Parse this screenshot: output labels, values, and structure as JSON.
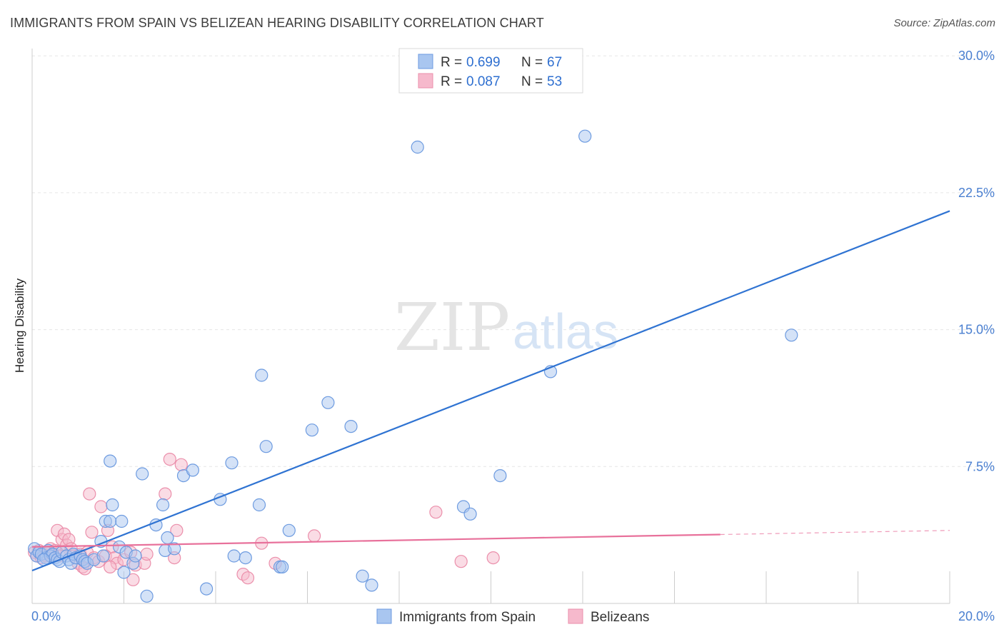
{
  "title": "IMMIGRANTS FROM SPAIN VS BELIZEAN HEARING DISABILITY CORRELATION CHART",
  "source": "Source: ZipAtlas.com",
  "watermark": {
    "zip": "ZIP",
    "atlas": "atlas"
  },
  "colors": {
    "blue_fill": "#a9c6f0",
    "blue_stroke": "#6d9be0",
    "blue_line": "#2f73d2",
    "pink_fill": "#f6b9cc",
    "pink_stroke": "#eb8fab",
    "pink_line": "#e8719b",
    "grid": "#e6e6e6",
    "tick_label": "#4a7fd0"
  },
  "legend": {
    "r_label": "R =",
    "n_label": "N =",
    "series": [
      {
        "r": "0.699",
        "n": "67"
      },
      {
        "r": "0.087",
        "n": "53"
      }
    ]
  },
  "chart_data": {
    "type": "scatter",
    "title": "IMMIGRANTS FROM SPAIN VS BELIZEAN HEARING DISABILITY CORRELATION CHART",
    "xlabel": "",
    "ylabel": "Hearing Disability",
    "xlim": [
      0,
      20
    ],
    "ylim": [
      0,
      31
    ],
    "x_tick_labels": [
      "0.0%",
      "20.0%"
    ],
    "y_ticks": [
      7.5,
      15.0,
      22.5,
      30.0
    ],
    "y_tick_labels": [
      "7.5%",
      "15.0%",
      "22.5%",
      "30.0%"
    ],
    "grid": true,
    "legend_position": "top-center",
    "series": [
      {
        "name": "Immigrants from Spain",
        "r": 0.699,
        "n": 67,
        "trend": {
          "x": [
            0,
            20
          ],
          "y": [
            1.8,
            21.5
          ],
          "solid_until": 20
        },
        "points": [
          [
            0.05,
            3.0
          ],
          [
            0.1,
            2.6
          ],
          [
            0.15,
            2.8
          ],
          [
            0.2,
            2.7
          ],
          [
            0.3,
            2.5
          ],
          [
            0.35,
            2.9
          ],
          [
            0.4,
            2.6
          ],
          [
            0.45,
            2.7
          ],
          [
            0.5,
            2.5
          ],
          [
            0.55,
            2.4
          ],
          [
            0.6,
            2.3
          ],
          [
            0.65,
            2.8
          ],
          [
            0.75,
            2.6
          ],
          [
            0.8,
            2.4
          ],
          [
            0.85,
            2.2
          ],
          [
            0.9,
            2.7
          ],
          [
            0.95,
            2.5
          ],
          [
            1.05,
            2.6
          ],
          [
            1.1,
            2.4
          ],
          [
            1.15,
            2.3
          ],
          [
            1.2,
            2.2
          ],
          [
            1.35,
            2.4
          ],
          [
            1.5,
            3.4
          ],
          [
            1.55,
            2.6
          ],
          [
            1.6,
            4.5
          ],
          [
            1.7,
            4.5
          ],
          [
            1.7,
            7.8
          ],
          [
            1.75,
            5.4
          ],
          [
            1.9,
            3.1
          ],
          [
            1.95,
            4.5
          ],
          [
            2.0,
            1.7
          ],
          [
            2.05,
            2.8
          ],
          [
            2.2,
            2.2
          ],
          [
            2.25,
            2.6
          ],
          [
            2.4,
            7.1
          ],
          [
            2.5,
            0.4
          ],
          [
            2.7,
            4.3
          ],
          [
            2.85,
            5.4
          ],
          [
            2.9,
            2.9
          ],
          [
            2.95,
            3.6
          ],
          [
            3.1,
            3.0
          ],
          [
            3.3,
            7.0
          ],
          [
            3.5,
            7.3
          ],
          [
            3.8,
            0.8
          ],
          [
            4.1,
            5.7
          ],
          [
            4.35,
            7.7
          ],
          [
            4.4,
            2.6
          ],
          [
            4.65,
            2.5
          ],
          [
            4.95,
            5.4
          ],
          [
            5.0,
            12.5
          ],
          [
            5.1,
            8.6
          ],
          [
            5.4,
            2.0
          ],
          [
            5.45,
            2.0
          ],
          [
            5.6,
            4.0
          ],
          [
            6.1,
            9.5
          ],
          [
            6.45,
            11.0
          ],
          [
            6.95,
            9.7
          ],
          [
            7.4,
            1.0
          ],
          [
            8.4,
            25.0
          ],
          [
            9.4,
            5.3
          ],
          [
            9.55,
            4.9
          ],
          [
            10.2,
            7.0
          ],
          [
            11.3,
            12.7
          ],
          [
            12.05,
            25.6
          ],
          [
            16.55,
            14.7
          ],
          [
            7.2,
            1.5
          ],
          [
            0.25,
            2.4
          ]
        ]
      },
      {
        "name": "Belizeans",
        "r": 0.087,
        "n": 53,
        "trend": {
          "x": [
            0,
            20
          ],
          "y": [
            3.1,
            4.0
          ],
          "solid_until": 15.0
        },
        "points": [
          [
            0.05,
            2.8
          ],
          [
            0.1,
            2.6
          ],
          [
            0.15,
            2.9
          ],
          [
            0.2,
            2.5
          ],
          [
            0.25,
            2.7
          ],
          [
            0.3,
            2.6
          ],
          [
            0.35,
            2.8
          ],
          [
            0.4,
            3.0
          ],
          [
            0.45,
            2.7
          ],
          [
            0.5,
            2.9
          ],
          [
            0.55,
            4.0
          ],
          [
            0.6,
            2.6
          ],
          [
            0.65,
            3.5
          ],
          [
            0.7,
            3.8
          ],
          [
            0.75,
            3.2
          ],
          [
            0.8,
            3.5
          ],
          [
            0.85,
            3.0
          ],
          [
            0.9,
            2.6
          ],
          [
            1.0,
            2.2
          ],
          [
            1.05,
            2.7
          ],
          [
            1.1,
            2.0
          ],
          [
            1.15,
            1.9
          ],
          [
            1.2,
            2.8
          ],
          [
            1.25,
            6.0
          ],
          [
            1.3,
            3.9
          ],
          [
            1.35,
            2.5
          ],
          [
            1.45,
            2.3
          ],
          [
            1.5,
            5.3
          ],
          [
            1.6,
            2.6
          ],
          [
            1.65,
            4.0
          ],
          [
            1.75,
            3.1
          ],
          [
            1.8,
            2.5
          ],
          [
            1.85,
            2.2
          ],
          [
            2.0,
            2.4
          ],
          [
            2.15,
            2.8
          ],
          [
            2.2,
            1.3
          ],
          [
            2.25,
            2.1
          ],
          [
            2.45,
            2.2
          ],
          [
            2.5,
            2.7
          ],
          [
            2.9,
            6.0
          ],
          [
            3.0,
            7.9
          ],
          [
            3.1,
            2.5
          ],
          [
            3.15,
            4.0
          ],
          [
            3.25,
            7.6
          ],
          [
            4.6,
            1.6
          ],
          [
            4.7,
            1.4
          ],
          [
            5.0,
            3.3
          ],
          [
            5.3,
            2.2
          ],
          [
            6.15,
            3.7
          ],
          [
            8.8,
            5.0
          ],
          [
            9.35,
            2.3
          ],
          [
            10.05,
            2.5
          ],
          [
            1.7,
            2.0
          ]
        ]
      }
    ]
  }
}
